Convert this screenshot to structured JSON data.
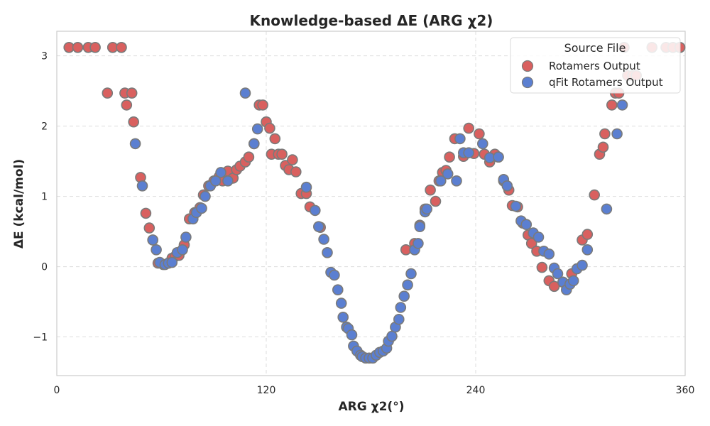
{
  "chart_data": {
    "type": "scatter",
    "title": "Knowledge-based ΔE (ARG χ2)",
    "xlabel": "ARG χ2(°)",
    "ylabel": "ΔE (kcal/mol)",
    "xlim": [
      0,
      360
    ],
    "ylim": [
      -1.55,
      3.35
    ],
    "xticks": [
      0,
      120,
      240,
      360
    ],
    "yticks": [
      -1,
      0,
      1,
      2,
      3
    ],
    "ytick_labels": [
      "−1",
      "0",
      "1",
      "2",
      "3"
    ],
    "grid": true,
    "legend": {
      "title": "Source File",
      "placement": "top-right"
    },
    "series": [
      {
        "name": "Rotamers Output",
        "color": "#d9605f",
        "points": [
          [
            7,
            3.12
          ],
          [
            12,
            3.12
          ],
          [
            18,
            3.12
          ],
          [
            22,
            3.12
          ],
          [
            29,
            2.47
          ],
          [
            32,
            3.12
          ],
          [
            37,
            3.12
          ],
          [
            39,
            2.47
          ],
          [
            40,
            2.3
          ],
          [
            43,
            2.47
          ],
          [
            44,
            2.06
          ],
          [
            48,
            1.27
          ],
          [
            51,
            0.76
          ],
          [
            53,
            0.55
          ],
          [
            55,
            0.38
          ],
          [
            58,
            0.05
          ],
          [
            61,
            0.03
          ],
          [
            64,
            0.05
          ],
          [
            66,
            0.12
          ],
          [
            68,
            0.15
          ],
          [
            70,
            0.16
          ],
          [
            73,
            0.31
          ],
          [
            76,
            0.68
          ],
          [
            79,
            0.77
          ],
          [
            82,
            0.84
          ],
          [
            84,
            1.02
          ],
          [
            87,
            1.15
          ],
          [
            90,
            1.22
          ],
          [
            93,
            1.28
          ],
          [
            95,
            1.22
          ],
          [
            98,
            1.36
          ],
          [
            101,
            1.26
          ],
          [
            103,
            1.38
          ],
          [
            105,
            1.43
          ],
          [
            108,
            1.49
          ],
          [
            110,
            1.56
          ],
          [
            113,
            1.75
          ],
          [
            116,
            2.3
          ],
          [
            118,
            2.3
          ],
          [
            120,
            2.06
          ],
          [
            122,
            1.97
          ],
          [
            123,
            1.6
          ],
          [
            125,
            1.82
          ],
          [
            127,
            1.6
          ],
          [
            129,
            1.6
          ],
          [
            131,
            1.44
          ],
          [
            133,
            1.38
          ],
          [
            135,
            1.52
          ],
          [
            137,
            1.35
          ],
          [
            140,
            1.04
          ],
          [
            143,
            1.04
          ],
          [
            145,
            0.85
          ],
          [
            151,
            0.56
          ],
          [
            200,
            0.24
          ],
          [
            205,
            0.33
          ],
          [
            208,
            0.59
          ],
          [
            211,
            0.82
          ],
          [
            214,
            1.09
          ],
          [
            217,
            0.93
          ],
          [
            219,
            1.22
          ],
          [
            221,
            1.34
          ],
          [
            223,
            1.37
          ],
          [
            225,
            1.56
          ],
          [
            228,
            1.82
          ],
          [
            233,
            1.57
          ],
          [
            236,
            1.97
          ],
          [
            239,
            1.61
          ],
          [
            242,
            1.89
          ],
          [
            245,
            1.6
          ],
          [
            248,
            1.49
          ],
          [
            251,
            1.6
          ],
          [
            253,
            1.56
          ],
          [
            256,
            1.22
          ],
          [
            259,
            1.09
          ],
          [
            261,
            0.87
          ],
          [
            264,
            0.85
          ],
          [
            267,
            0.62
          ],
          [
            270,
            0.45
          ],
          [
            272,
            0.33
          ],
          [
            275,
            0.22
          ],
          [
            278,
            -0.01
          ],
          [
            282,
            -0.2
          ],
          [
            285,
            -0.28
          ],
          [
            290,
            -0.22
          ],
          [
            295,
            -0.1
          ],
          [
            301,
            0.38
          ],
          [
            304,
            0.46
          ],
          [
            308,
            1.02
          ],
          [
            311,
            1.6
          ],
          [
            313,
            1.7
          ],
          [
            314,
            1.89
          ],
          [
            318,
            2.3
          ],
          [
            320,
            2.47
          ],
          [
            322,
            2.47
          ],
          [
            325,
            3.12
          ],
          [
            327,
            2.72
          ],
          [
            330,
            2.72
          ],
          [
            332,
            2.72
          ],
          [
            341,
            3.12
          ],
          [
            349,
            3.12
          ],
          [
            353,
            3.12
          ],
          [
            357,
            3.12
          ]
        ]
      },
      {
        "name": "qFit Rotamers Output",
        "color": "#5b7fd1",
        "points": [
          [
            45,
            1.75
          ],
          [
            49,
            1.15
          ],
          [
            55,
            0.38
          ],
          [
            57,
            0.24
          ],
          [
            59,
            0.06
          ],
          [
            62,
            0.03
          ],
          [
            64,
            0.05
          ],
          [
            66,
            0.06
          ],
          [
            69,
            0.2
          ],
          [
            72,
            0.24
          ],
          [
            74,
            0.42
          ],
          [
            78,
            0.68
          ],
          [
            80,
            0.77
          ],
          [
            83,
            0.83
          ],
          [
            85,
            1.0
          ],
          [
            88,
            1.15
          ],
          [
            91,
            1.22
          ],
          [
            94,
            1.34
          ],
          [
            98,
            1.22
          ],
          [
            108,
            2.47
          ],
          [
            113,
            1.75
          ],
          [
            115,
            1.96
          ],
          [
            143,
            1.13
          ],
          [
            148,
            0.8
          ],
          [
            150,
            0.57
          ],
          [
            153,
            0.39
          ],
          [
            155,
            0.2
          ],
          [
            157,
            -0.08
          ],
          [
            159,
            -0.12
          ],
          [
            161,
            -0.33
          ],
          [
            163,
            -0.52
          ],
          [
            164,
            -0.72
          ],
          [
            166,
            -0.86
          ],
          [
            167,
            -0.88
          ],
          [
            169,
            -0.97
          ],
          [
            170,
            -1.13
          ],
          [
            172,
            -1.2
          ],
          [
            174,
            -1.26
          ],
          [
            175,
            -1.28
          ],
          [
            177,
            -1.3
          ],
          [
            179,
            -1.3
          ],
          [
            181,
            -1.3
          ],
          [
            183,
            -1.26
          ],
          [
            185,
            -1.22
          ],
          [
            187,
            -1.2
          ],
          [
            189,
            -1.16
          ],
          [
            190,
            -1.06
          ],
          [
            192,
            -0.99
          ],
          [
            194,
            -0.86
          ],
          [
            196,
            -0.75
          ],
          [
            197,
            -0.58
          ],
          [
            199,
            -0.42
          ],
          [
            201,
            -0.26
          ],
          [
            203,
            -0.1
          ],
          [
            205,
            0.24
          ],
          [
            207,
            0.33
          ],
          [
            208,
            0.57
          ],
          [
            211,
            0.78
          ],
          [
            212,
            0.82
          ],
          [
            220,
            1.22
          ],
          [
            224,
            1.32
          ],
          [
            229,
            1.22
          ],
          [
            231,
            1.82
          ],
          [
            233,
            1.62
          ],
          [
            236,
            1.62
          ],
          [
            244,
            1.75
          ],
          [
            248,
            1.55
          ],
          [
            253,
            1.56
          ],
          [
            256,
            1.24
          ],
          [
            258,
            1.15
          ],
          [
            263,
            0.86
          ],
          [
            266,
            0.65
          ],
          [
            269,
            0.6
          ],
          [
            273,
            0.48
          ],
          [
            276,
            0.42
          ],
          [
            279,
            0.22
          ],
          [
            282,
            0.18
          ],
          [
            285,
            -0.02
          ],
          [
            287,
            -0.1
          ],
          [
            290,
            -0.22
          ],
          [
            292,
            -0.33
          ],
          [
            294,
            -0.25
          ],
          [
            296,
            -0.2
          ],
          [
            298,
            -0.03
          ],
          [
            301,
            0.02
          ],
          [
            304,
            0.24
          ],
          [
            315,
            0.82
          ],
          [
            321,
            1.89
          ],
          [
            324,
            2.3
          ]
        ]
      }
    ]
  }
}
